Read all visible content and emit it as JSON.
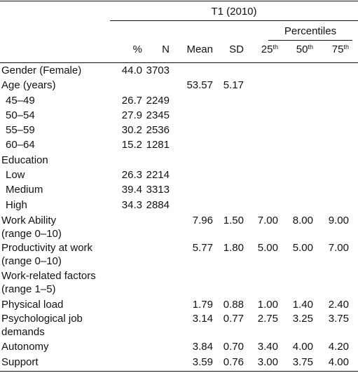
{
  "header": {
    "group_label": "T1 (2010)",
    "percentiles_label": "Percentiles",
    "columns": [
      {
        "label": "%",
        "sup": ""
      },
      {
        "label": "N",
        "sup": ""
      },
      {
        "label": "Mean",
        "sup": ""
      },
      {
        "label": "SD",
        "sup": ""
      },
      {
        "label": "25",
        "sup": "th"
      },
      {
        "label": "50",
        "sup": "th"
      },
      {
        "label": "75",
        "sup": "th"
      }
    ]
  },
  "rows": [
    {
      "label": [
        "Gender (Female)"
      ],
      "indent": false,
      "values": [
        "44.0",
        "3703",
        "",
        "",
        "",
        "",
        ""
      ]
    },
    {
      "label": [
        "Age (years)"
      ],
      "indent": false,
      "values": [
        "",
        "",
        "53.57",
        "5.17",
        "",
        "",
        ""
      ]
    },
    {
      "label": [
        "45–49"
      ],
      "indent": true,
      "values": [
        "26.7",
        "2249",
        "",
        "",
        "",
        "",
        ""
      ]
    },
    {
      "label": [
        "50–54"
      ],
      "indent": true,
      "values": [
        "27.9",
        "2345",
        "",
        "",
        "",
        "",
        ""
      ]
    },
    {
      "label": [
        "55–59"
      ],
      "indent": true,
      "values": [
        "30.2",
        "2536",
        "",
        "",
        "",
        "",
        ""
      ]
    },
    {
      "label": [
        "60–64"
      ],
      "indent": true,
      "values": [
        "15.2",
        "1281",
        "",
        "",
        "",
        "",
        ""
      ]
    },
    {
      "label": [
        "Education"
      ],
      "indent": false,
      "values": [
        "",
        "",
        "",
        "",
        "",
        "",
        ""
      ]
    },
    {
      "label": [
        "Low"
      ],
      "indent": true,
      "values": [
        "26.3",
        "2214",
        "",
        "",
        "",
        "",
        ""
      ]
    },
    {
      "label": [
        "Medium"
      ],
      "indent": true,
      "values": [
        "39.4",
        "3313",
        "",
        "",
        "",
        "",
        ""
      ]
    },
    {
      "label": [
        "High"
      ],
      "indent": true,
      "values": [
        "34.3",
        "2884",
        "",
        "",
        "",
        "",
        ""
      ]
    },
    {
      "label": [
        "Work Ability",
        "(range 0–10)"
      ],
      "indent": false,
      "values": [
        "",
        "",
        "7.96",
        "1.50",
        "7.00",
        "8.00",
        "9.00"
      ]
    },
    {
      "label": [
        "Productivity at work",
        "(range 0–10)"
      ],
      "indent": false,
      "values": [
        "",
        "",
        "5.77",
        "1.80",
        "5.00",
        "5.00",
        "7.00"
      ]
    },
    {
      "label": [
        "Work-related factors",
        "(range 1–5)"
      ],
      "indent": false,
      "values": [
        "",
        "",
        "",
        "",
        "",
        "",
        ""
      ]
    },
    {
      "label": [
        "Physical load"
      ],
      "indent": false,
      "values": [
        "",
        "",
        "1.79",
        "0.88",
        "1.00",
        "1.40",
        "2.40"
      ]
    },
    {
      "label": [
        "Psychological job",
        "demands"
      ],
      "indent": false,
      "values": [
        "",
        "",
        "3.14",
        "0.77",
        "2.75",
        "3.25",
        "3.75"
      ]
    },
    {
      "label": [
        "Autonomy"
      ],
      "indent": false,
      "values": [
        "",
        "",
        "3.84",
        "0.70",
        "3.40",
        "4.00",
        "4.20"
      ]
    },
    {
      "label": [
        "Support"
      ],
      "indent": false,
      "values": [
        "",
        "",
        "3.59",
        "0.76",
        "3.00",
        "3.75",
        "4.00"
      ]
    }
  ]
}
